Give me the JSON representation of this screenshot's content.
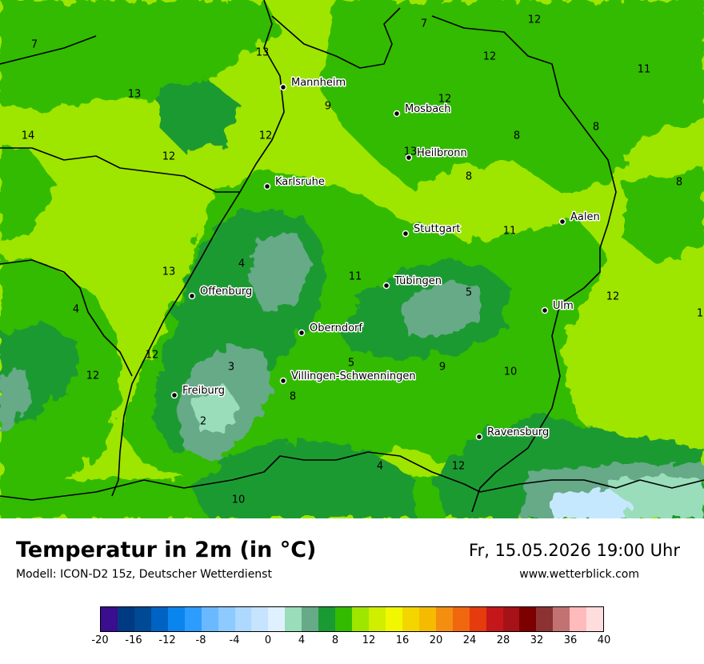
{
  "title": "Temperatur in 2m (in °C)",
  "model": "Modell: ICON-D2 15z, Deutscher Wetterdienst",
  "datetime": "Fr, 15.05.2026 19:00 Uhr",
  "website": "www.wetterblick.com",
  "colors": {
    "background_light": "#9ee500",
    "mid": "#33bb00",
    "dark": "#19a019",
    "cool": "#66aa88",
    "cold": "#99ddbb",
    "colder": "#c6e8ff",
    "border": "#000000"
  },
  "cities": [
    {
      "name": "Mannheim"
    },
    {
      "name": "Mosbach"
    },
    {
      "name": "Heilbronn"
    },
    {
      "name": "Karlsruhe"
    },
    {
      "name": "Stuttgart"
    },
    {
      "name": "Aalen"
    },
    {
      "name": "Tübingen"
    },
    {
      "name": "Offenburg"
    },
    {
      "name": "Ulm"
    },
    {
      "name": "Oberndorf"
    },
    {
      "name": "Villingen-Schwenningen"
    },
    {
      "name": "Freiburg"
    },
    {
      "name": "Ravensburg"
    }
  ],
  "temperature_labels": [
    "7",
    "12",
    "13",
    "12",
    "11",
    "13",
    "9",
    "12",
    "14",
    "12",
    "8",
    "8",
    "7",
    "8",
    "13",
    "8",
    "12",
    "11",
    "4",
    "13",
    "11",
    "5",
    "4",
    "12",
    "1",
    "12",
    "5",
    "9",
    "10",
    "3",
    "8",
    "12",
    "2",
    "4",
    "12",
    "10"
  ],
  "legend": {
    "colors": [
      "#3b0d8f",
      "#003a82",
      "#004994",
      "#0063c4",
      "#0a85ee",
      "#2d9cff",
      "#6ab8ff",
      "#8ccaff",
      "#add8ff",
      "#c6e4ff",
      "#dff0ff",
      "#99ddbb",
      "#66aa88",
      "#1a9a33",
      "#33bb00",
      "#9ee500",
      "#d0ee00",
      "#f1f700",
      "#f3d600",
      "#f5bb00",
      "#f48e11",
      "#f06710",
      "#e53b0d",
      "#c4171a",
      "#a51218",
      "#7d0000",
      "#8c3232",
      "#c27272",
      "#ffbbbb",
      "#ffdddd"
    ],
    "ticks": [
      "-20",
      "-16",
      "-12",
      "-8",
      "-4",
      "0",
      "4",
      "8",
      "12",
      "16",
      "20",
      "24",
      "28",
      "32",
      "36",
      "40"
    ]
  }
}
